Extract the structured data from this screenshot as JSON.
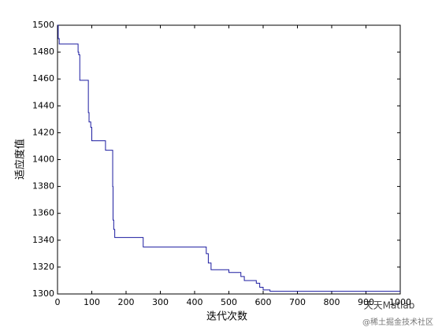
{
  "chart_data": {
    "type": "line",
    "step": "post",
    "xlabel": "迭代次数",
    "ylabel": "适应度值",
    "x": [
      0,
      2,
      5,
      60,
      62,
      65,
      90,
      92,
      97,
      100,
      103,
      140,
      161,
      162,
      164,
      167,
      172,
      250,
      434,
      440,
      448,
      460,
      500,
      535,
      545,
      580,
      590,
      600,
      620,
      1000
    ],
    "series": [
      {
        "color": "#1c1ca0",
        "values": [
          1500,
          1490,
          1486,
          1480,
          1478,
          1459,
          1435,
          1428,
          1424,
          1414,
          1414,
          1407,
          1380,
          1355,
          1348,
          1342,
          1342,
          1335,
          1330,
          1323,
          1318,
          1318,
          1316,
          1313,
          1310,
          1308,
          1305,
          1303,
          1302,
          1302
        ]
      }
    ],
    "xlim": [
      0,
      1000
    ],
    "xticks": [
      0,
      100,
      200,
      300,
      400,
      500,
      600,
      700,
      800,
      900,
      1000
    ],
    "ylim": [
      1300,
      1500
    ],
    "yticks": [
      1300,
      1320,
      1340,
      1360,
      1380,
      1400,
      1420,
      1440,
      1460,
      1480,
      1500
    ],
    "grid": false,
    "annotations": [
      "天天Matlab",
      "@稀土掘金技术社区"
    ]
  }
}
